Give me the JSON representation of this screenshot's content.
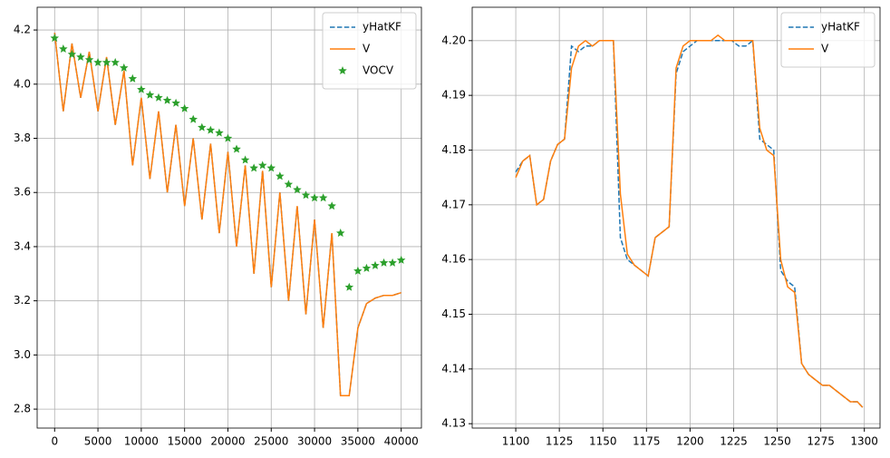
{
  "chart_data": [
    {
      "type": "line",
      "grid": true,
      "legend": "upper right",
      "xlim": [
        -2016,
        42336
      ],
      "ylim": [
        2.73,
        4.284
      ],
      "xticks": [
        0,
        5000,
        10000,
        15000,
        20000,
        25000,
        30000,
        35000,
        40000
      ],
      "yticks": [
        2.8,
        {
          "value": 3,
          "label": "3.0"
        },
        3.2,
        3.4,
        3.6,
        3.8,
        {
          "value": 4,
          "label": "4.0"
        },
        4.2
      ],
      "x": [
        0,
        1000,
        2000,
        3000,
        4000,
        5000,
        6000,
        7000,
        8000,
        9000,
        10000,
        11000,
        12000,
        13000,
        14000,
        15000,
        16000,
        17000,
        18000,
        19000,
        20000,
        21000,
        22000,
        23000,
        24000,
        25000,
        26000,
        27000,
        28000,
        29000,
        30000,
        31000,
        32000,
        33000,
        34000,
        35000,
        36000,
        37000,
        38000,
        39000,
        40000
      ],
      "series": [
        {
          "name": "yHatKF",
          "color": "#1f77b4",
          "linestyle": "dashed",
          "values": [
            4.19,
            3.9,
            4.15,
            3.95,
            4.12,
            3.9,
            4.1,
            3.85,
            4.05,
            3.7,
            3.95,
            3.65,
            3.9,
            3.6,
            3.85,
            3.55,
            3.8,
            3.5,
            3.78,
            3.45,
            3.75,
            3.4,
            3.7,
            3.3,
            3.68,
            3.25,
            3.6,
            3.2,
            3.55,
            3.15,
            3.5,
            3.1,
            3.45,
            2.85,
            2.85,
            3.1,
            3.19,
            3.21,
            3.22,
            3.22,
            3.23
          ]
        },
        {
          "name": "V",
          "color": "#ff7f0e",
          "linestyle": "solid",
          "values": [
            4.19,
            3.9,
            4.15,
            3.95,
            4.12,
            3.9,
            4.1,
            3.85,
            4.05,
            3.7,
            3.95,
            3.65,
            3.9,
            3.6,
            3.85,
            3.55,
            3.8,
            3.5,
            3.78,
            3.45,
            3.75,
            3.4,
            3.7,
            3.3,
            3.68,
            3.25,
            3.6,
            3.2,
            3.55,
            3.15,
            3.5,
            3.1,
            3.45,
            2.85,
            2.85,
            3.1,
            3.19,
            3.21,
            3.22,
            3.22,
            3.23
          ]
        },
        {
          "name": "VOCV",
          "color": "#2ca02c",
          "linestyle": "none",
          "marker": "star",
          "values": [
            4.17,
            4.13,
            4.11,
            4.1,
            4.09,
            4.08,
            4.08,
            4.08,
            4.06,
            4.02,
            3.98,
            3.96,
            3.95,
            3.94,
            3.93,
            3.91,
            3.87,
            3.84,
            3.83,
            3.82,
            3.8,
            3.76,
            3.72,
            3.69,
            3.7,
            3.69,
            3.66,
            3.63,
            3.61,
            3.59,
            3.58,
            3.58,
            3.55,
            3.45,
            3.25,
            3.31,
            3.32,
            3.33,
            3.34,
            3.34,
            3.35
          ]
        }
      ]
    },
    {
      "type": "line",
      "grid": true,
      "legend": "upper right",
      "xlim": [
        1075,
        1309
      ],
      "ylim": [
        4.1292,
        4.2061
      ],
      "xticks": [
        1100,
        1125,
        1150,
        1175,
        1200,
        1225,
        1250,
        1275,
        1300
      ],
      "yticks": [
        4.13,
        4.14,
        4.15,
        4.16,
        4.17,
        4.18,
        4.19,
        {
          "value": 4.2,
          "label": "4.20"
        }
      ],
      "x": [
        1100,
        1104,
        1108,
        1112,
        1116,
        1120,
        1124,
        1128,
        1132,
        1136,
        1140,
        1144,
        1148,
        1152,
        1156,
        1160,
        1164,
        1168,
        1172,
        1176,
        1180,
        1184,
        1188,
        1192,
        1196,
        1200,
        1204,
        1208,
        1212,
        1216,
        1220,
        1224,
        1228,
        1232,
        1236,
        1240,
        1244,
        1248,
        1252,
        1256,
        1260,
        1264,
        1268,
        1272,
        1276,
        1280,
        1284,
        1288,
        1292,
        1296,
        1299
      ],
      "series": [
        {
          "name": "yHatKF",
          "color": "#1f77b4",
          "linestyle": "dashed",
          "values": [
            4.176,
            4.178,
            4.179,
            4.17,
            4.171,
            4.178,
            4.181,
            4.182,
            4.199,
            4.198,
            4.199,
            4.199,
            4.2,
            4.2,
            4.2,
            4.164,
            4.16,
            4.159,
            4.158,
            4.157,
            4.164,
            4.165,
            4.166,
            4.194,
            4.198,
            4.199,
            4.2,
            4.2,
            4.2,
            4.2,
            4.2,
            4.2,
            4.199,
            4.199,
            4.2,
            4.182,
            4.181,
            4.18,
            4.158,
            4.156,
            4.155,
            4.141,
            4.139,
            4.138,
            4.137,
            4.137,
            4.136,
            4.135,
            4.134,
            4.134,
            4.133
          ]
        },
        {
          "name": "V",
          "color": "#ff7f0e",
          "linestyle": "solid",
          "values": [
            4.175,
            4.178,
            4.179,
            4.17,
            4.171,
            4.178,
            4.181,
            4.182,
            4.195,
            4.199,
            4.2,
            4.199,
            4.2,
            4.2,
            4.2,
            4.172,
            4.161,
            4.159,
            4.158,
            4.157,
            4.164,
            4.165,
            4.166,
            4.195,
            4.199,
            4.2,
            4.2,
            4.2,
            4.2,
            4.201,
            4.2,
            4.2,
            4.2,
            4.2,
            4.2,
            4.184,
            4.18,
            4.179,
            4.16,
            4.155,
            4.154,
            4.141,
            4.139,
            4.138,
            4.137,
            4.137,
            4.136,
            4.135,
            4.134,
            4.134,
            4.133
          ]
        }
      ]
    }
  ]
}
